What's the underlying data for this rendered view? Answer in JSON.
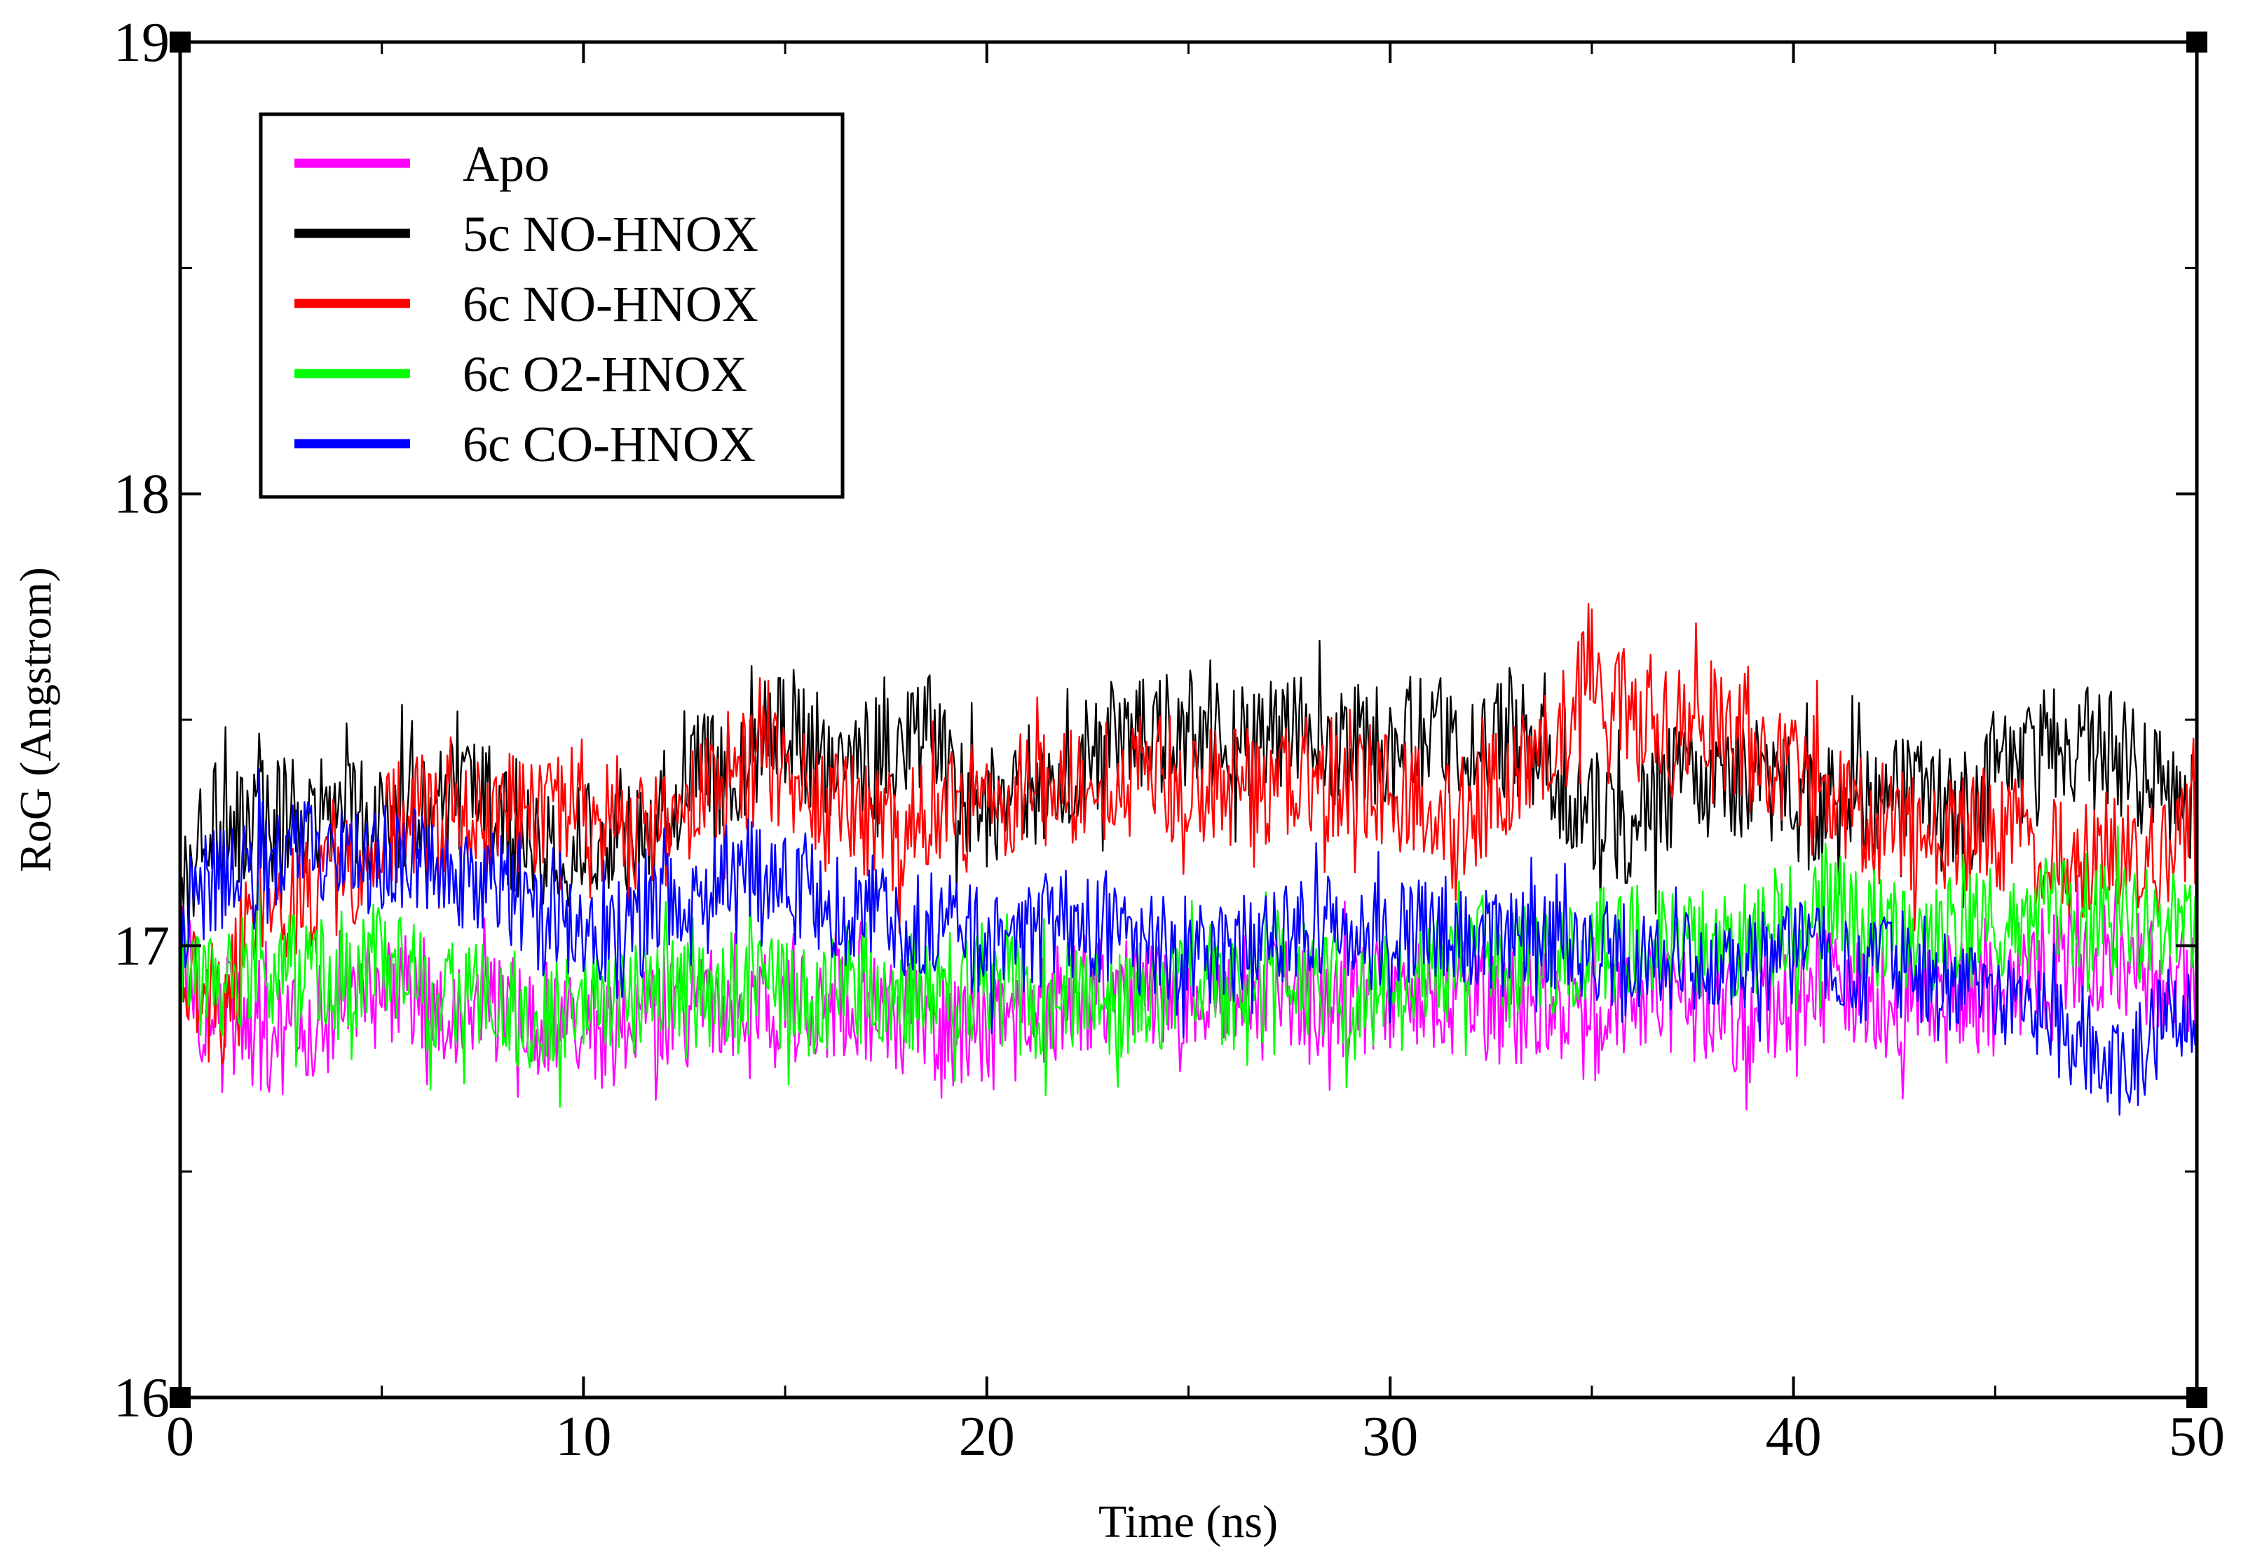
{
  "chart_data": {
    "type": "line",
    "title": "",
    "xlabel": "Time (ns)",
    "ylabel": "RoG (Angstrom)",
    "xlim": [
      0,
      50
    ],
    "ylim": [
      16,
      19
    ],
    "x_ticks": [
      0,
      10,
      20,
      30,
      40,
      50
    ],
    "y_ticks": [
      16,
      17,
      18,
      19
    ],
    "x_tick_labels": [
      "0",
      "10",
      "20",
      "30",
      "40",
      "50"
    ],
    "y_tick_labels": [
      "16",
      "17",
      "18",
      "19"
    ],
    "grid": false,
    "legend_position": "top-left",
    "sample_interval_ns": 0.5,
    "series": [
      {
        "name": "Apo",
        "color": "#ff00ff",
        "values": [
          17.0,
          16.88,
          16.86,
          16.82,
          16.8,
          16.8,
          16.82,
          16.84,
          16.86,
          16.88,
          16.9,
          16.9,
          16.9,
          16.88,
          16.86,
          16.85,
          16.85,
          16.85,
          16.84,
          16.83,
          16.82,
          16.81,
          16.82,
          16.84,
          16.85,
          16.86,
          16.87,
          16.86,
          16.85,
          16.85,
          16.86,
          16.88,
          16.88,
          16.87,
          16.86,
          16.85,
          16.84,
          16.84,
          16.82,
          16.8,
          16.8,
          16.82,
          16.84,
          16.86,
          16.88,
          16.9,
          16.9,
          16.89,
          16.88,
          16.87,
          16.88,
          16.89,
          16.9,
          16.9,
          16.9,
          16.89,
          16.88,
          16.88,
          16.88,
          16.89,
          16.9,
          16.9,
          16.9,
          16.89,
          16.88,
          16.87,
          16.86,
          16.86,
          16.85,
          16.84,
          16.82,
          16.84,
          16.86,
          16.88,
          16.88,
          16.87,
          16.86,
          16.85,
          16.86,
          16.88,
          16.9,
          16.91,
          16.9,
          16.88,
          16.87,
          16.87,
          16.88,
          16.9,
          16.9,
          16.89,
          16.88,
          16.9,
          16.93,
          16.96,
          16.97,
          16.97,
          16.96,
          16.95,
          16.93,
          16.92,
          16.92
        ]
      },
      {
        "name": "5c NO-HNOX",
        "color": "#000000",
        "values": [
          17.1,
          17.25,
          17.27,
          17.28,
          17.28,
          17.28,
          17.3,
          17.3,
          17.29,
          17.28,
          17.28,
          17.3,
          17.3,
          17.32,
          17.32,
          17.3,
          17.27,
          17.22,
          17.2,
          17.2,
          17.22,
          17.25,
          17.26,
          17.27,
          17.3,
          17.35,
          17.38,
          17.4,
          17.42,
          17.48,
          17.5,
          17.45,
          17.4,
          17.38,
          17.4,
          17.42,
          17.43,
          17.48,
          17.4,
          17.3,
          17.3,
          17.33,
          17.35,
          17.38,
          17.4,
          17.42,
          17.45,
          17.46,
          17.47,
          17.48,
          17.48,
          17.46,
          17.45,
          17.45,
          17.48,
          17.5,
          17.47,
          17.42,
          17.43,
          17.45,
          17.45,
          17.46,
          17.47,
          17.45,
          17.4,
          17.42,
          17.48,
          17.45,
          17.35,
          17.3,
          17.3,
          17.28,
          17.26,
          17.3,
          17.35,
          17.38,
          17.38,
          17.37,
          17.36,
          17.35,
          17.33,
          17.3,
          17.3,
          17.32,
          17.33,
          17.33,
          17.32,
          17.3,
          17.3,
          17.33,
          17.36,
          17.4,
          17.42,
          17.45,
          17.46,
          17.45,
          17.42,
          17.4,
          17.35,
          17.32,
          17.3
        ]
      },
      {
        "name": "6c NO-HNOX",
        "color": "#ff0000",
        "values": [
          17.0,
          16.9,
          16.85,
          17.0,
          17.05,
          17.08,
          17.1,
          17.12,
          17.15,
          17.2,
          17.25,
          17.28,
          17.3,
          17.3,
          17.28,
          17.27,
          17.28,
          17.3,
          17.3,
          17.3,
          17.32,
          17.3,
          17.28,
          17.25,
          17.25,
          17.3,
          17.35,
          17.38,
          17.4,
          17.4,
          17.38,
          17.35,
          17.3,
          17.3,
          17.28,
          17.25,
          17.25,
          17.28,
          17.3,
          17.3,
          17.32,
          17.33,
          17.33,
          17.34,
          17.35,
          17.36,
          17.37,
          17.38,
          17.38,
          17.37,
          17.36,
          17.36,
          17.35,
          17.35,
          17.36,
          17.37,
          17.38,
          17.38,
          17.37,
          17.35,
          17.33,
          17.32,
          17.3,
          17.28,
          17.3,
          17.35,
          17.38,
          17.4,
          17.45,
          17.5,
          17.65,
          17.55,
          17.5,
          17.48,
          17.48,
          17.5,
          17.5,
          17.45,
          17.42,
          17.42,
          17.4,
          17.38,
          17.35,
          17.3,
          17.28,
          17.27,
          17.26,
          17.25,
          17.24,
          17.25,
          17.26,
          17.25,
          17.22,
          17.2,
          17.18,
          17.2,
          17.22,
          17.2,
          17.18,
          17.2,
          17.25
        ]
      },
      {
        "name": "6c O2-HNOX",
        "color": "#00ff00",
        "values": [
          17.0,
          16.92,
          16.92,
          16.93,
          16.95,
          16.95,
          16.95,
          16.93,
          16.92,
          16.95,
          16.98,
          16.95,
          16.9,
          16.88,
          16.88,
          16.88,
          16.87,
          16.86,
          16.86,
          16.85,
          16.85,
          16.87,
          16.88,
          16.9,
          16.9,
          16.88,
          16.88,
          16.9,
          16.92,
          16.9,
          16.88,
          16.88,
          16.9,
          16.92,
          16.9,
          16.88,
          16.88,
          16.9,
          16.92,
          16.92,
          16.92,
          16.9,
          16.88,
          16.88,
          16.9,
          16.9,
          16.89,
          16.88,
          16.88,
          16.9,
          16.92,
          16.92,
          16.9,
          16.9,
          16.92,
          16.93,
          16.93,
          16.92,
          16.9,
          16.9,
          16.92,
          16.94,
          16.95,
          16.96,
          16.97,
          16.98,
          16.98,
          16.97,
          16.97,
          16.98,
          17.0,
          17.0,
          17.0,
          17.02,
          17.03,
          17.02,
          17.0,
          17.0,
          17.02,
          17.04,
          17.05,
          17.07,
          17.08,
          17.06,
          17.04,
          17.03,
          17.02,
          17.02,
          17.03,
          17.04,
          17.05,
          17.05,
          17.06,
          17.07,
          17.08,
          17.07,
          17.05,
          17.03,
          17.05,
          17.08,
          17.08
        ]
      },
      {
        "name": "6c CO-HNOX",
        "color": "#0000ff",
        "values": [
          17.05,
          17.12,
          17.15,
          17.18,
          17.2,
          17.2,
          17.2,
          17.2,
          17.18,
          17.18,
          17.2,
          17.2,
          17.2,
          17.2,
          17.15,
          17.12,
          17.1,
          17.08,
          17.05,
          17.03,
          17.02,
          17.0,
          17.0,
          17.05,
          17.1,
          17.08,
          17.05,
          17.15,
          17.18,
          17.15,
          17.12,
          17.1,
          17.1,
          17.08,
          17.08,
          17.05,
          17.03,
          17.05,
          17.05,
          17.02,
          17.0,
          17.0,
          17.02,
          17.05,
          17.05,
          17.05,
          17.03,
          17.02,
          17.0,
          17.0,
          17.0,
          16.98,
          16.98,
          17.0,
          17.02,
          17.05,
          17.05,
          17.04,
          17.03,
          17.02,
          17.02,
          17.03,
          17.04,
          17.04,
          17.02,
          17.0,
          17.0,
          17.02,
          17.02,
          17.0,
          16.98,
          16.97,
          16.96,
          16.97,
          16.98,
          16.98,
          16.97,
          16.96,
          16.96,
          16.97,
          16.98,
          16.98,
          16.97,
          16.96,
          16.95,
          16.95,
          16.95,
          16.94,
          16.93,
          16.9,
          16.88,
          16.86,
          16.85,
          16.82,
          16.8,
          16.78,
          16.72,
          16.76,
          16.82,
          16.85,
          16.88
        ]
      }
    ]
  }
}
